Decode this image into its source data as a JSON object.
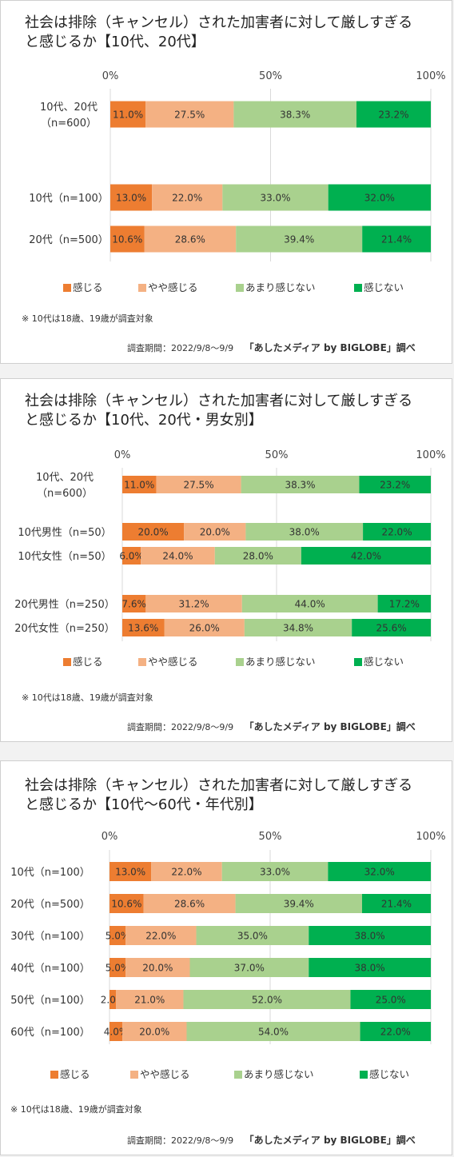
{
  "legend": [
    "感じる",
    "やや感じる",
    "あまり感じない",
    "感じない"
  ],
  "colors": [
    "#ed7d31",
    "#f4b183",
    "#a9d18e",
    "#00b050"
  ],
  "note": "※ 10代は18歳、19歳が調査対象",
  "credit_period": "調査期間：2022/9/8〜9/9",
  "credit_source": "「あしたメディア by BIGLOBE」調べ",
  "chart_data": [
    {
      "type": "bar",
      "orientation": "horizontal",
      "stacked": true,
      "title_line1": "社会は排除（キャンセル）された加害者に対して厳しすぎる",
      "title_line2": "と感じるか【10代、20代】",
      "xticks": [
        "0%",
        "50%",
        "100%"
      ],
      "xlim": [
        0,
        100
      ],
      "categories": [
        [
          "10代、20代",
          "（n=600）"
        ],
        [
          "10代（n=100）"
        ],
        [
          "20代（n=500）"
        ]
      ],
      "series": [
        {
          "name": "感じる",
          "values": [
            11.0,
            13.0,
            10.6
          ],
          "labels": [
            "11.0%",
            "13.0%",
            "10.6%"
          ]
        },
        {
          "name": "やや感じる",
          "values": [
            27.5,
            22.0,
            28.6
          ],
          "labels": [
            "27.5%",
            "22.0%",
            "28.6%"
          ]
        },
        {
          "name": "あまり感じない",
          "values": [
            38.3,
            33.0,
            39.4
          ],
          "labels": [
            "38.3%",
            "33.0%",
            "39.4%"
          ]
        },
        {
          "name": "感じない",
          "values": [
            23.2,
            32.0,
            21.4
          ],
          "labels": [
            "23.2%",
            "32.0%",
            "21.4%"
          ]
        }
      ]
    },
    {
      "type": "bar",
      "orientation": "horizontal",
      "stacked": true,
      "title_line1": "社会は排除（キャンセル）された加害者に対して厳しすぎる",
      "title_line2": "と感じるか【10代、20代・男女別】",
      "xticks": [
        "0%",
        "50%",
        "100%"
      ],
      "xlim": [
        0,
        100
      ],
      "categories": [
        [
          "10代、20代",
          "（n=600）"
        ],
        [
          "10代男性（n=50）"
        ],
        [
          "10代女性（n=50）"
        ],
        [
          "20代男性（n=250）"
        ],
        [
          "20代女性（n=250）"
        ]
      ],
      "series": [
        {
          "name": "感じる",
          "values": [
            11.0,
            20.0,
            6.0,
            7.6,
            13.6
          ],
          "labels": [
            "11.0%",
            "20.0%",
            "6.0%",
            "7.6%",
            "13.6%"
          ]
        },
        {
          "name": "やや感じる",
          "values": [
            27.5,
            20.0,
            24.0,
            31.2,
            26.0
          ],
          "labels": [
            "27.5%",
            "20.0%",
            "24.0%",
            "31.2%",
            "26.0%"
          ]
        },
        {
          "name": "あまり感じない",
          "values": [
            38.3,
            38.0,
            28.0,
            44.0,
            34.8
          ],
          "labels": [
            "38.3%",
            "38.0%",
            "28.0%",
            "44.0%",
            "34.8%"
          ]
        },
        {
          "name": "感じない",
          "values": [
            23.2,
            22.0,
            42.0,
            17.2,
            25.6
          ],
          "labels": [
            "23.2%",
            "22.0%",
            "42.0%",
            "17.2%",
            "25.6%"
          ]
        }
      ]
    },
    {
      "type": "bar",
      "orientation": "horizontal",
      "stacked": true,
      "title_line1": "社会は排除（キャンセル）された加害者に対して厳しすぎる",
      "title_line2": "と感じるか【10代〜60代・年代別】",
      "xticks": [
        "0%",
        "50%",
        "100%"
      ],
      "xlim": [
        0,
        100
      ],
      "categories": [
        [
          "10代（n=100）"
        ],
        [
          "20代（n=500）"
        ],
        [
          "30代（n=100）"
        ],
        [
          "40代（n=100）"
        ],
        [
          "50代（n=100）"
        ],
        [
          "60代（n=100）"
        ]
      ],
      "series": [
        {
          "name": "感じる",
          "values": [
            13.0,
            10.6,
            5.0,
            5.0,
            2.0,
            4.0
          ],
          "labels": [
            "13.0%",
            "10.6%",
            "5.0%",
            "5.0%",
            "2.0%",
            "4.0%"
          ]
        },
        {
          "name": "やや感じる",
          "values": [
            22.0,
            28.6,
            22.0,
            20.0,
            21.0,
            20.0
          ],
          "labels": [
            "22.0%",
            "28.6%",
            "22.0%",
            "20.0%",
            "21.0%",
            "20.0%"
          ]
        },
        {
          "name": "あまり感じない",
          "values": [
            33.0,
            39.4,
            35.0,
            37.0,
            52.0,
            54.0
          ],
          "labels": [
            "33.0%",
            "39.4%",
            "35.0%",
            "37.0%",
            "52.0%",
            "54.0%"
          ]
        },
        {
          "name": "感じない",
          "values": [
            32.0,
            21.4,
            38.0,
            38.0,
            25.0,
            22.0
          ],
          "labels": [
            "32.0%",
            "21.4%",
            "38.0%",
            "38.0%",
            "25.0%",
            "22.0%"
          ]
        }
      ]
    }
  ]
}
